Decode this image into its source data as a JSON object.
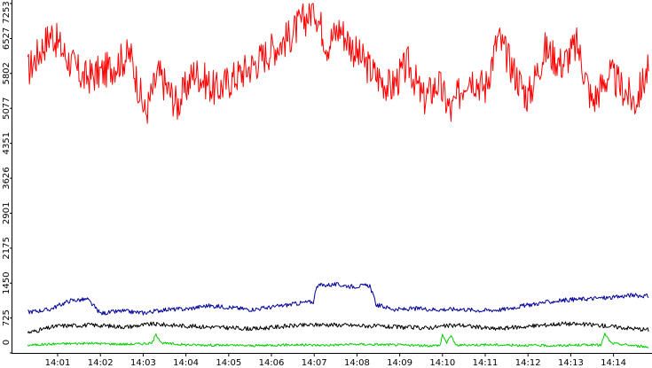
{
  "chart_data": {
    "type": "line",
    "y_ticks": [
      "0",
      "725",
      "1450",
      "2175",
      "2901",
      "3626",
      "4351",
      "5077",
      "5802",
      "6527",
      "7253"
    ],
    "ylim": [
      0,
      7253
    ],
    "x_ticks": [
      "14:01",
      "14:02",
      "14:03",
      "14:04",
      "14:05",
      "14:06",
      "14:07",
      "14:08",
      "14:09",
      "14:10",
      "14:11",
      "14:12",
      "14:13",
      "14:14"
    ],
    "x_tick_minutes": [
      1,
      2,
      3,
      4,
      5,
      6,
      7,
      8,
      9,
      10,
      11,
      12,
      13,
      14
    ],
    "x_range_minutes": [
      0.3,
      14.82
    ],
    "grid": false,
    "legend": "none",
    "series": [
      {
        "color": "#ff0000",
        "x": [
          0.3,
          0.85,
          1.2,
          1.6,
          2.1,
          2.7,
          3.05,
          3.35,
          3.8,
          4.2,
          4.7,
          5.1,
          5.6,
          6.0,
          6.4,
          6.8,
          7.0,
          7.3,
          7.6,
          8.0,
          8.4,
          8.8,
          9.2,
          9.55,
          9.9,
          10.2,
          10.6,
          11.0,
          11.3,
          11.7,
          12.0,
          12.4,
          12.8,
          13.15,
          13.5,
          13.9,
          14.2,
          14.5,
          14.82
        ],
        "values": [
          5850,
          6650,
          6150,
          5700,
          5850,
          6200,
          4950,
          5800,
          5150,
          5850,
          5450,
          5700,
          6000,
          6300,
          6550,
          6950,
          7200,
          6400,
          6750,
          6200,
          5800,
          5500,
          6000,
          5250,
          5600,
          5000,
          5800,
          5500,
          6550,
          5800,
          5300,
          6300,
          6000,
          6400,
          5200,
          5800,
          5500,
          5200,
          5900
        ]
      },
      {
        "color": "#000099",
        "x": [
          0.3,
          0.8,
          1.3,
          1.7,
          2.0,
          2.5,
          3.0,
          3.5,
          4.0,
          4.5,
          5.0,
          5.5,
          6.0,
          6.4,
          6.8,
          6.99,
          7.05,
          7.5,
          7.9,
          8.3,
          8.45,
          8.9,
          9.4,
          9.9,
          10.4,
          10.9,
          11.4,
          11.9,
          12.4,
          12.9,
          13.3,
          13.7,
          14.0,
          14.4,
          14.82
        ],
        "values": [
          850,
          900,
          1090,
          1110,
          820,
          870,
          830,
          900,
          910,
          980,
          950,
          900,
          950,
          1000,
          1050,
          1060,
          1400,
          1420,
          1380,
          1400,
          1000,
          900,
          920,
          900,
          910,
          880,
          900,
          980,
          1050,
          1100,
          1120,
          1140,
          1150,
          1200,
          1180
        ]
      },
      {
        "color": "#000000",
        "x": [
          0.3,
          1.0,
          1.8,
          2.6,
          3.2,
          4.0,
          4.8,
          5.6,
          6.4,
          7.2,
          8.0,
          8.8,
          9.6,
          10.4,
          11.2,
          12.0,
          12.8,
          13.6,
          14.3,
          14.82
        ],
        "values": [
          420,
          560,
          580,
          540,
          600,
          560,
          530,
          500,
          560,
          590,
          570,
          540,
          520,
          580,
          500,
          550,
          610,
          580,
          520,
          480
        ]
      },
      {
        "color": "#00cc00",
        "x": [
          0.3,
          1.0,
          1.8,
          2.6,
          3.2,
          3.3,
          3.45,
          4.0,
          4.8,
          5.6,
          6.4,
          7.2,
          8.0,
          8.8,
          9.6,
          9.95,
          10.0,
          10.1,
          10.2,
          10.3,
          11.0,
          11.8,
          12.6,
          13.4,
          13.7,
          13.8,
          13.95,
          14.4,
          14.82
        ],
        "values": [
          160,
          190,
          200,
          180,
          200,
          380,
          200,
          170,
          160,
          150,
          170,
          160,
          180,
          170,
          150,
          160,
          390,
          200,
          380,
          160,
          170,
          160,
          150,
          170,
          160,
          390,
          200,
          160,
          120
        ]
      }
    ]
  }
}
